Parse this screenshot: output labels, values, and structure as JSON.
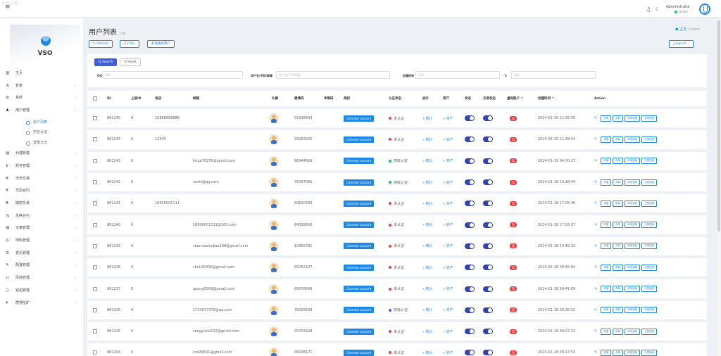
{
  "ghost": "系统设置",
  "header": {
    "admin_name": "Administrator",
    "admin_status": "Online"
  },
  "logo": {
    "text": "VSO"
  },
  "sidebar": {
    "items": [
      {
        "icon": "▥",
        "label": "主页",
        "arrow": ""
      },
      {
        "icon": "ᗅ",
        "label": "管家",
        "arrow": "‹"
      },
      {
        "icon": "⚙",
        "label": "系统",
        "arrow": "‹"
      },
      {
        "icon": "♟",
        "label": "用户管理",
        "arrow": "⌄"
      },
      {
        "icon": "",
        "label": "用户列表",
        "sub": true,
        "active": true
      },
      {
        "icon": "",
        "label": "实名认证",
        "sub": true
      },
      {
        "icon": "",
        "label": "登录日志",
        "sub": true
      },
      {
        "icon": "▤",
        "label": "代理管理",
        "arrow": "‹"
      },
      {
        "icon": "$",
        "label": "财务管理",
        "arrow": "‹"
      },
      {
        "icon": "B",
        "label": "币币交易",
        "arrow": "‹"
      },
      {
        "icon": "B",
        "label": "交割合约",
        "arrow": "‹"
      },
      {
        "icon": "B",
        "label": "期权交易",
        "arrow": "‹"
      },
      {
        "icon": "%",
        "label": "永续合约",
        "arrow": "‹"
      },
      {
        "icon": "▤",
        "label": "文章管理",
        "arrow": "‹"
      },
      {
        "icon": "◎",
        "label": "申购管理",
        "arrow": "‹"
      },
      {
        "icon": "☰",
        "label": "首页管理",
        "arrow": "‹"
      },
      {
        "icon": "✎",
        "label": "配置管理",
        "arrow": "‹"
      },
      {
        "icon": "☷",
        "label": "风控管理",
        "arrow": "‹"
      },
      {
        "icon": "○",
        "label": "钱包管理",
        "arrow": "‹"
      },
      {
        "icon": "¥",
        "label": "质押挖矿",
        "arrow": "‹"
      }
    ]
  },
  "page": {
    "title": "用户列表",
    "subtitle": "List",
    "breadcrumb_home": "主页",
    "breadcrumb_sep": "/",
    "breadcrumb_current": "Users",
    "refresh": "↻ Refresh",
    "filter": "⊽ Filter",
    "add_virtual": "新增虚拟用户",
    "export": "⤓ Export ⌄",
    "search": "Q Search",
    "reset": "↺ Reset"
  },
  "filters": {
    "uid_label": "UID",
    "uid_ph": "UID",
    "account_label": "用户名/手机/邮箱",
    "account_ph": "用户名/手机/邮箱",
    "date_label": "创建时间",
    "date_from_ph": "开始",
    "date_sep": "To",
    "date_to_ph": "结束"
  },
  "table": {
    "headers": [
      "ID",
      "上级ID",
      "电话",
      "邮箱",
      "头像",
      "邀请码",
      "申购码",
      "类别",
      "认证状态",
      "统计",
      "资产",
      "状态",
      "交易状态",
      "虚拟账户 ▽",
      "创建时间 ↑",
      "Action"
    ],
    "account_type": "Common account",
    "stat_link": "» 统计",
    "asset_link": "» 资产",
    "virtual": "否",
    "actions": [
      "充值",
      "扣除",
      "修改密码",
      "交易密码"
    ],
    "colors": {
      "unverified": "#e84545",
      "verified_senior": "#22bb66",
      "verified_basic": "#3d5fd6"
    },
    "rows": [
      {
        "id": "881245",
        "parent": "0",
        "phone": "15888888888",
        "email": "",
        "invite": "02938694",
        "status": "未认证",
        "status_color": "#e84545",
        "created": "2024-01-19 11:56:59"
      },
      {
        "id": "881244",
        "parent": "0",
        "phone": "12345",
        "email": "",
        "invite": "76256025",
        "status": "未认证",
        "status_color": "#e84545",
        "created": "2024-01-19 11:49:54"
      },
      {
        "id": "881243",
        "parent": "0",
        "phone": "",
        "email": "hhua70276@gamil.com",
        "invite": "98944669",
        "status": "高级认证",
        "status_color": "#22bb66",
        "created": "2024-01-19 04:00:27"
      },
      {
        "id": "881242",
        "parent": "0",
        "phone": "",
        "email": "ceshi@qq.com",
        "invite": "78347095",
        "status": "高级认证",
        "status_color": "#22bb66",
        "created": "2024-01-18 19:28:44"
      },
      {
        "id": "881241",
        "parent": "0",
        "phone": "18800001111",
        "email": "",
        "invite": "89810583",
        "status": "未认证",
        "status_color": "#e84545",
        "created": "2024-01-18 17:05:46"
      },
      {
        "id": "881240",
        "parent": "0",
        "phone": "",
        "email": "18800001111@163.com",
        "invite": "84399593",
        "status": "未认证",
        "status_color": "#e84545",
        "created": "2024-01-18 17:05:07"
      },
      {
        "id": "881239",
        "parent": "0",
        "phone": "",
        "email": "xiaomashuijiao168@gmail.com",
        "invite": "10956781",
        "status": "未认证",
        "status_color": "#e84545",
        "created": "2024-01-18 10:46:32"
      },
      {
        "id": "881238",
        "parent": "0",
        "phone": "",
        "email": "shuk30438@gmail.com",
        "invite": "65762187",
        "status": "未认证",
        "status_color": "#e84545",
        "created": "2024-01-18 09:46:04"
      },
      {
        "id": "881237",
        "parent": "0",
        "phone": "",
        "email": "apang5569@gmail.com",
        "invite": "65478699",
        "status": "未认证",
        "status_color": "#e84545",
        "created": "2024-01-18 09:41:09"
      },
      {
        "id": "881236",
        "parent": "0",
        "phone": "",
        "email": "1744877373@qq.com",
        "invite": "78299690",
        "status": "初级认证",
        "status_color": "#3d5fd6",
        "created": "2024-01-18 09:35:52"
      },
      {
        "id": "881235",
        "parent": "0",
        "phone": "",
        "email": "zengyukai123@gmail.com",
        "invite": "25705628",
        "status": "未认证",
        "status_color": "#e84545",
        "created": "2024-01-18 09:27:23"
      },
      {
        "id": "881234",
        "parent": "0",
        "phone": "",
        "email": "coz29801@gmail.com",
        "invite": "46936671",
        "status": "未认证",
        "status_color": "#e84545",
        "created": "2024-01-18 09:17:53"
      }
    ]
  }
}
